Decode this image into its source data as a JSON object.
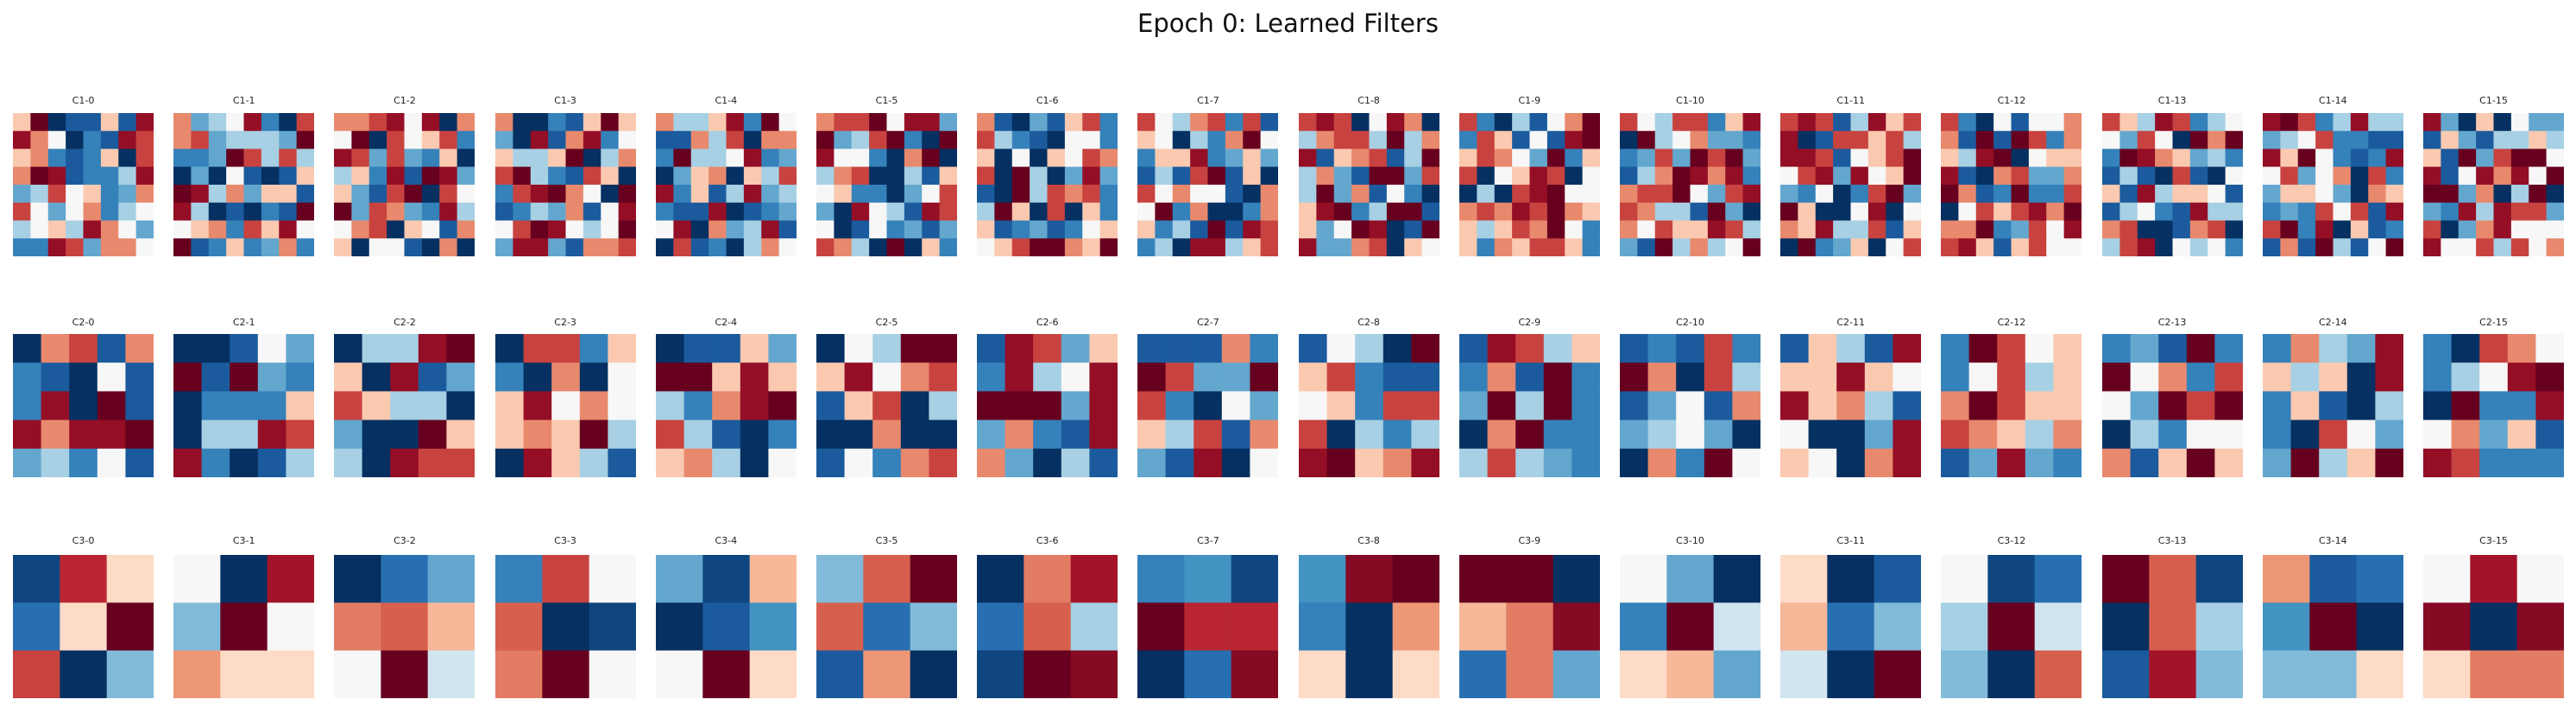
{
  "chart_data": {
    "type": "heatmap",
    "title": "Epoch 0: Learned Filters",
    "colormap": "RdBu_r",
    "value_range": [
      -1,
      1
    ],
    "rows": [
      {
        "kernel_size": 8,
        "labels": [
          "C1-0",
          "C1-1",
          "C1-2",
          "C1-3",
          "C1-4",
          "C1-5",
          "C1-6",
          "C1-7",
          "C1-8",
          "C1-9",
          "C1-10",
          "C1-11",
          "C1-12",
          "C1-13",
          "C1-14",
          "C1-15"
        ]
      },
      {
        "kernel_size": 5,
        "labels": [
          "C2-0",
          "C2-1",
          "C2-2",
          "C2-3",
          "C2-4",
          "C2-5",
          "C2-6",
          "C2-7",
          "C2-8",
          "C2-9",
          "C2-10",
          "C2-11",
          "C2-12",
          "C2-13",
          "C2-14",
          "C2-15"
        ]
      },
      {
        "kernel_size": 3,
        "labels": [
          "C3-0",
          "C3-1",
          "C3-2",
          "C3-3",
          "C3-4",
          "C3-5",
          "C3-6",
          "C3-7",
          "C3-8",
          "C3-9",
          "C3-10",
          "C3-11",
          "C3-12",
          "C3-13",
          "C3-14",
          "C3-15"
        ]
      }
    ],
    "c3_values": [
      [
        [
          -0.9,
          0.7,
          0.1
        ],
        [
          -0.7,
          0.1,
          1.0
        ],
        [
          0.6,
          -1.0,
          -0.3
        ]
      ],
      [
        [
          0.0,
          -1.0,
          0.8
        ],
        [
          -0.3,
          1.0,
          0.0
        ],
        [
          0.3,
          0.1,
          0.1
        ]
      ],
      [
        [
          -1.0,
          -0.7,
          -0.4
        ],
        [
          0.4,
          0.5,
          0.2
        ],
        [
          0.0,
          1.0,
          -0.1
        ]
      ],
      [
        [
          -0.6,
          0.6,
          0.0
        ],
        [
          0.5,
          -1.0,
          -0.9
        ],
        [
          0.4,
          1.0,
          0.0
        ]
      ],
      [
        [
          -0.4,
          -0.9,
          0.2
        ],
        [
          -1.0,
          -0.8,
          -0.5
        ],
        [
          0.0,
          1.0,
          0.1
        ]
      ],
      [
        [
          -0.3,
          0.5,
          1.0
        ],
        [
          0.5,
          -0.7,
          -0.3
        ],
        [
          -0.8,
          0.3,
          -1.0
        ]
      ],
      [
        [
          -1.0,
          0.4,
          0.8
        ],
        [
          -0.7,
          0.5,
          -0.2
        ],
        [
          -0.9,
          1.0,
          0.9
        ]
      ],
      [
        [
          -0.6,
          -0.5,
          -0.9
        ],
        [
          1.0,
          0.7,
          0.7
        ],
        [
          -1.0,
          -0.7,
          0.9
        ]
      ],
      [
        [
          -0.5,
          0.9,
          1.0
        ],
        [
          -0.6,
          -1.0,
          0.3
        ],
        [
          0.1,
          -1.0,
          0.1
        ]
      ],
      [
        [
          1.0,
          1.0,
          -1.0
        ],
        [
          0.2,
          0.4,
          0.9
        ],
        [
          -0.7,
          0.4,
          -0.4
        ]
      ],
      [
        [
          0.0,
          -0.4,
          -1.0
        ],
        [
          -0.6,
          1.0,
          -0.1
        ],
        [
          0.1,
          0.2,
          -0.4
        ]
      ],
      [
        [
          0.1,
          -1.0,
          -0.8
        ],
        [
          0.2,
          -0.7,
          -0.3
        ],
        [
          -0.1,
          -1.0,
          1.0
        ]
      ],
      [
        [
          0.0,
          -0.9,
          -0.7
        ],
        [
          -0.2,
          1.0,
          -0.1
        ],
        [
          -0.3,
          -1.0,
          0.5
        ]
      ],
      [
        [
          1.0,
          0.5,
          -0.9
        ],
        [
          -1.0,
          0.5,
          -0.2
        ],
        [
          -0.8,
          0.8,
          -0.3
        ]
      ],
      [
        [
          0.3,
          -0.8,
          -0.7
        ],
        [
          -0.5,
          1.0,
          -1.0
        ],
        [
          -0.3,
          -0.3,
          0.1
        ]
      ],
      [
        [
          0.0,
          0.8,
          0.0
        ],
        [
          0.9,
          -1.0,
          0.9
        ],
        [
          0.1,
          0.4,
          0.4
        ]
      ]
    ]
  }
}
